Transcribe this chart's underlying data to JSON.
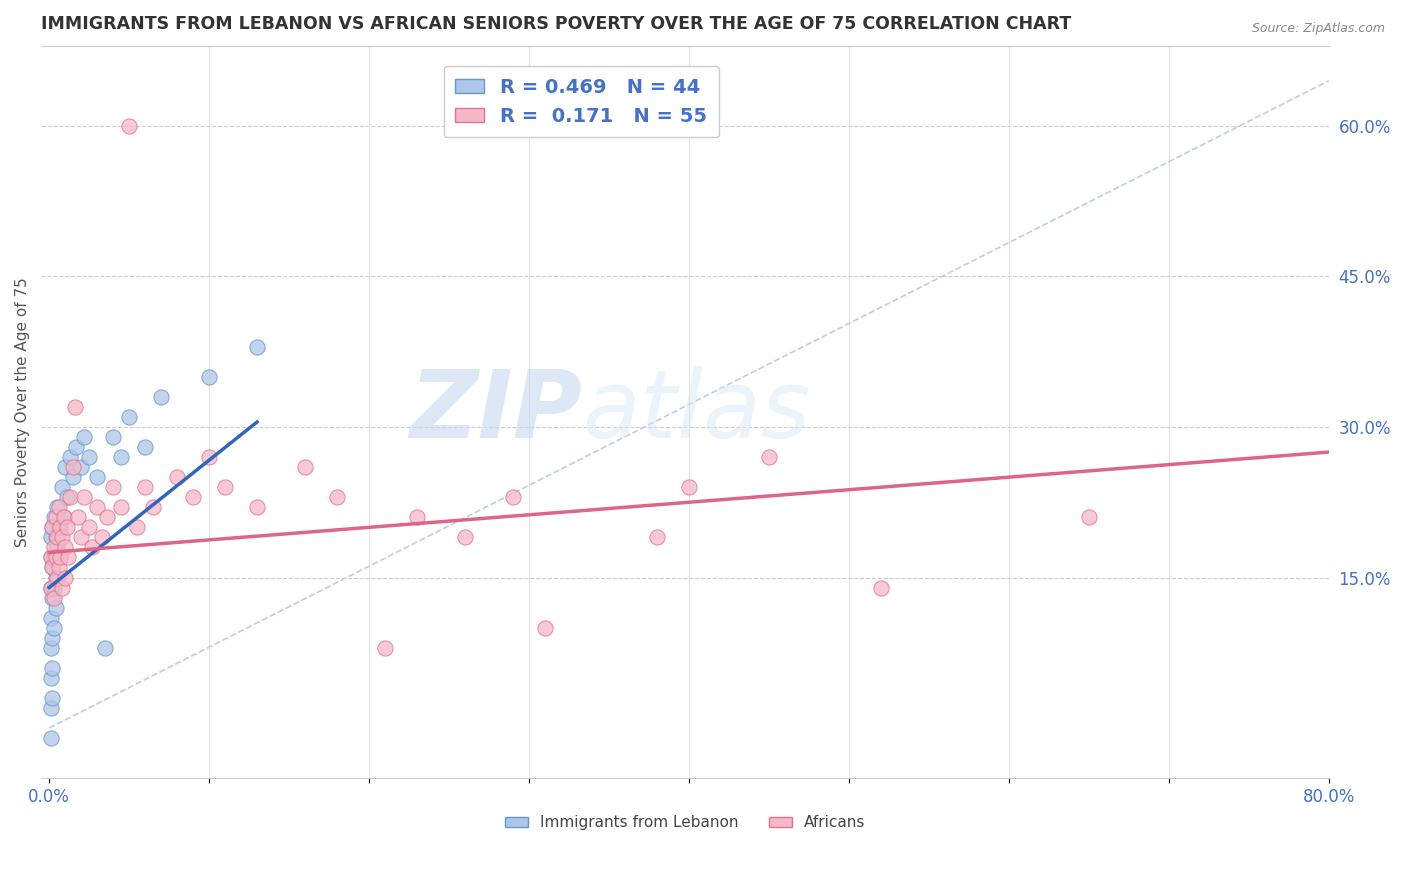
{
  "title": "IMMIGRANTS FROM LEBANON VS AFRICAN SENIORS POVERTY OVER THE AGE OF 75 CORRELATION CHART",
  "source": "Source: ZipAtlas.com",
  "ylabel": "Seniors Poverty Over the Age of 75",
  "xlim": [
    -0.005,
    0.8
  ],
  "ylim": [
    -0.05,
    0.68
  ],
  "xticks": [
    0.0,
    0.1,
    0.2,
    0.3,
    0.4,
    0.5,
    0.6,
    0.7,
    0.8
  ],
  "ytick_labels_right": [
    "15.0%",
    "30.0%",
    "45.0%",
    "60.0%"
  ],
  "ytick_vals_right": [
    0.15,
    0.3,
    0.45,
    0.6
  ],
  "legend_blue_label": "R = 0.469   N = 44",
  "legend_pink_label": "R =  0.171   N = 55",
  "watermark_zip": "ZIP",
  "watermark_atlas": "atlas",
  "blue_color": "#aec6e8",
  "pink_color": "#f5b8c8",
  "blue_edge_color": "#6699cc",
  "pink_edge_color": "#e87090",
  "blue_scatter": [
    [
      0.001,
      0.19
    ],
    [
      0.001,
      0.17
    ],
    [
      0.001,
      0.14
    ],
    [
      0.001,
      0.11
    ],
    [
      0.001,
      0.08
    ],
    [
      0.001,
      0.05
    ],
    [
      0.001,
      0.02
    ],
    [
      0.001,
      -0.01
    ],
    [
      0.002,
      0.2
    ],
    [
      0.002,
      0.16
    ],
    [
      0.002,
      0.13
    ],
    [
      0.002,
      0.09
    ],
    [
      0.002,
      0.06
    ],
    [
      0.002,
      0.03
    ],
    [
      0.003,
      0.21
    ],
    [
      0.003,
      0.17
    ],
    [
      0.003,
      0.14
    ],
    [
      0.003,
      0.1
    ],
    [
      0.004,
      0.19
    ],
    [
      0.004,
      0.15
    ],
    [
      0.004,
      0.12
    ],
    [
      0.005,
      0.22
    ],
    [
      0.005,
      0.18
    ],
    [
      0.006,
      0.2
    ],
    [
      0.007,
      0.17
    ],
    [
      0.008,
      0.24
    ],
    [
      0.009,
      0.21
    ],
    [
      0.01,
      0.26
    ],
    [
      0.011,
      0.23
    ],
    [
      0.013,
      0.27
    ],
    [
      0.015,
      0.25
    ],
    [
      0.017,
      0.28
    ],
    [
      0.02,
      0.26
    ],
    [
      0.022,
      0.29
    ],
    [
      0.025,
      0.27
    ],
    [
      0.03,
      0.25
    ],
    [
      0.035,
      0.08
    ],
    [
      0.04,
      0.29
    ],
    [
      0.045,
      0.27
    ],
    [
      0.05,
      0.31
    ],
    [
      0.06,
      0.28
    ],
    [
      0.07,
      0.33
    ],
    [
      0.1,
      0.35
    ],
    [
      0.13,
      0.38
    ]
  ],
  "pink_scatter": [
    [
      0.001,
      0.17
    ],
    [
      0.001,
      0.14
    ],
    [
      0.002,
      0.2
    ],
    [
      0.002,
      0.16
    ],
    [
      0.003,
      0.18
    ],
    [
      0.003,
      0.13
    ],
    [
      0.004,
      0.21
    ],
    [
      0.004,
      0.17
    ],
    [
      0.005,
      0.15
    ],
    [
      0.005,
      0.19
    ],
    [
      0.006,
      0.22
    ],
    [
      0.006,
      0.16
    ],
    [
      0.007,
      0.2
    ],
    [
      0.007,
      0.17
    ],
    [
      0.008,
      0.19
    ],
    [
      0.008,
      0.14
    ],
    [
      0.009,
      0.21
    ],
    [
      0.01,
      0.18
    ],
    [
      0.01,
      0.15
    ],
    [
      0.011,
      0.2
    ],
    [
      0.012,
      0.17
    ],
    [
      0.013,
      0.23
    ],
    [
      0.015,
      0.26
    ],
    [
      0.016,
      0.32
    ],
    [
      0.018,
      0.21
    ],
    [
      0.02,
      0.19
    ],
    [
      0.022,
      0.23
    ],
    [
      0.025,
      0.2
    ],
    [
      0.027,
      0.18
    ],
    [
      0.03,
      0.22
    ],
    [
      0.033,
      0.19
    ],
    [
      0.036,
      0.21
    ],
    [
      0.04,
      0.24
    ],
    [
      0.045,
      0.22
    ],
    [
      0.05,
      0.6
    ],
    [
      0.055,
      0.2
    ],
    [
      0.06,
      0.24
    ],
    [
      0.065,
      0.22
    ],
    [
      0.08,
      0.25
    ],
    [
      0.09,
      0.23
    ],
    [
      0.1,
      0.27
    ],
    [
      0.11,
      0.24
    ],
    [
      0.13,
      0.22
    ],
    [
      0.16,
      0.26
    ],
    [
      0.18,
      0.23
    ],
    [
      0.21,
      0.08
    ],
    [
      0.23,
      0.21
    ],
    [
      0.26,
      0.19
    ],
    [
      0.29,
      0.23
    ],
    [
      0.31,
      0.1
    ],
    [
      0.38,
      0.19
    ],
    [
      0.4,
      0.24
    ],
    [
      0.45,
      0.27
    ],
    [
      0.52,
      0.14
    ],
    [
      0.65,
      0.21
    ]
  ],
  "blue_line_x": [
    0.0,
    0.13
  ],
  "blue_line_y": [
    0.14,
    0.305
  ],
  "pink_line_x": [
    0.0,
    0.8
  ],
  "pink_line_y": [
    0.175,
    0.275
  ],
  "diag_line_x": [
    0.0,
    0.8
  ],
  "diag_line_y": [
    0.0,
    0.645
  ],
  "diag_color": "#b8cfe8"
}
